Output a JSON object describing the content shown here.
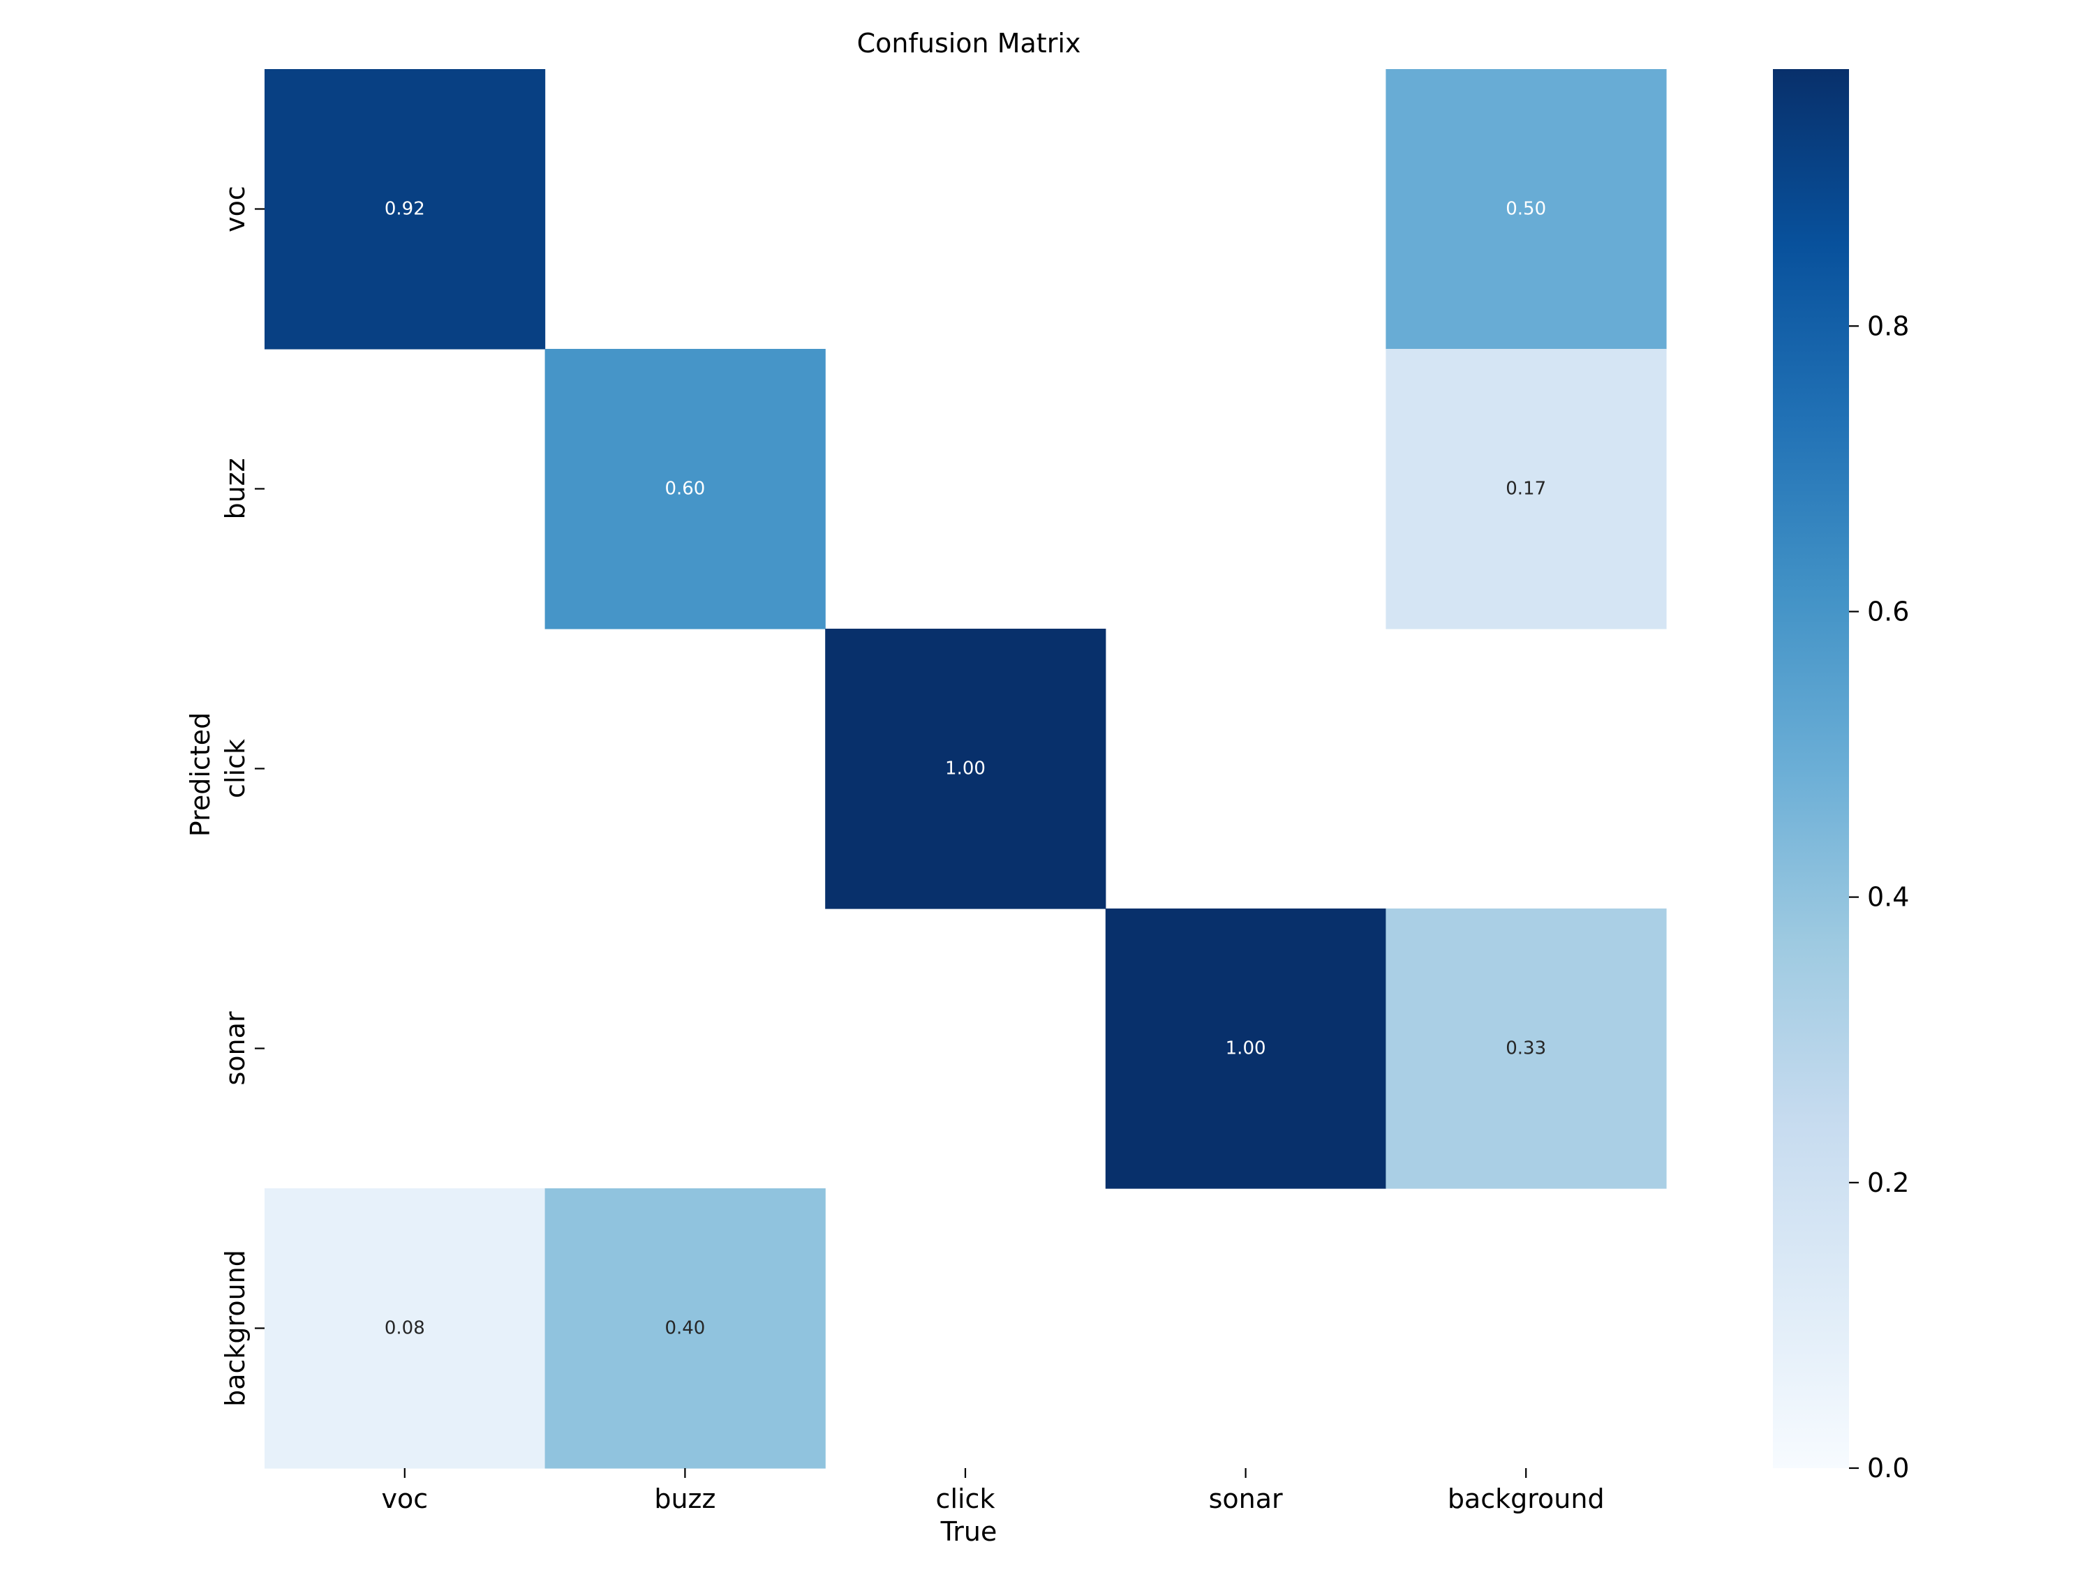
{
  "chart_data": {
    "type": "heatmap",
    "title": "Confusion Matrix",
    "xlabel": "True",
    "ylabel": "Predicted",
    "x_categories": [
      "voc",
      "buzz",
      "click",
      "sonar",
      "background"
    ],
    "y_categories": [
      "voc",
      "buzz",
      "click",
      "sonar",
      "background"
    ],
    "values": [
      [
        0.92,
        null,
        null,
        null,
        0.5
      ],
      [
        null,
        0.6,
        null,
        null,
        0.17
      ],
      [
        null,
        null,
        1.0,
        null,
        null
      ],
      [
        null,
        null,
        null,
        1.0,
        0.33
      ],
      [
        0.08,
        0.4,
        null,
        null,
        null
      ]
    ],
    "value_format": "0.00",
    "colormap": "Blues",
    "color_range": [
      0,
      0.98
    ],
    "colorbar_ticks": [
      "0.0",
      "0.2",
      "0.4",
      "0.6",
      "0.8"
    ],
    "colorbar_tick_values": [
      0.0,
      0.2,
      0.4,
      0.6,
      0.8
    ],
    "grid": false
  }
}
